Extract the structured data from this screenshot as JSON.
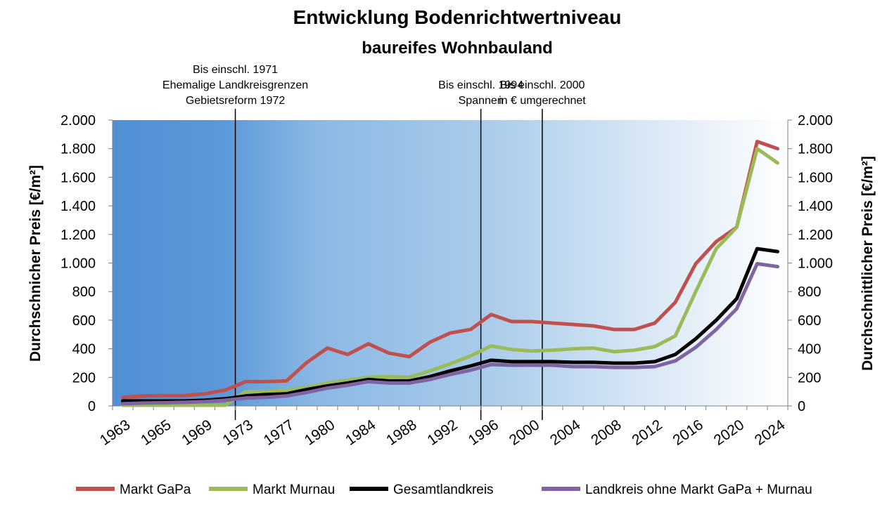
{
  "chart_data": {
    "type": "line",
    "title": "Entwicklung Bodenrichtwertniveau",
    "subtitle": "baureifes Wohnbauland",
    "ylabel_left": "Durchschnicher Preis [€/m²]",
    "ylabel_right": "Durchschnittlicher Preis [€/m²]",
    "ylim": [
      0,
      2000
    ],
    "yticks": [
      0,
      200,
      400,
      600,
      800,
      1000,
      1200,
      1400,
      1600,
      1800,
      2000
    ],
    "ytick_labels": [
      "0",
      "200",
      "400",
      "600",
      "800",
      "1.000",
      "1.200",
      "1.400",
      "1.600",
      "1.800",
      "2.000"
    ],
    "x": [
      "1963",
      "1964",
      "1965",
      "1967",
      "1969",
      "1971",
      "1973",
      "1975",
      "1977",
      "1979",
      "1980",
      "1982",
      "1984",
      "1986",
      "1988",
      "1990",
      "1992",
      "1994",
      "1996",
      "1998",
      "2000",
      "2002",
      "2004",
      "2006",
      "2008",
      "2010",
      "2012",
      "2014",
      "2016",
      "2018",
      "2020",
      "2022",
      "2024"
    ],
    "xtick_labels": [
      "1963",
      "1965",
      "1969",
      "1973",
      "1977",
      "1980",
      "1984",
      "1988",
      "1992",
      "1996",
      "2000",
      "2004",
      "2008",
      "2012",
      "2016",
      "2020",
      "2024"
    ],
    "series": [
      {
        "name": "Markt GaPa",
        "color": "#c0504d",
        "values": [
          60,
          70,
          72,
          72,
          85,
          110,
          170,
          170,
          175,
          305,
          405,
          360,
          435,
          370,
          345,
          445,
          510,
          535,
          640,
          590,
          590,
          580,
          570,
          560,
          535,
          535,
          580,
          725,
          995,
          1150,
          1250,
          1850,
          1800
        ]
      },
      {
        "name": "Markt Murnau",
        "color": "#9bbb59",
        "values": [
          5,
          5,
          5,
          5,
          5,
          5,
          100,
          100,
          110,
          130,
          160,
          180,
          200,
          205,
          200,
          245,
          295,
          350,
          420,
          395,
          385,
          390,
          400,
          405,
          380,
          390,
          415,
          490,
          800,
          1100,
          1250,
          1800,
          1700
        ]
      },
      {
        "name": "Gesamtlandkreis",
        "color": "#000000",
        "values": [
          35,
          35,
          35,
          35,
          40,
          50,
          70,
          80,
          85,
          115,
          140,
          160,
          185,
          175,
          175,
          205,
          245,
          280,
          320,
          310,
          310,
          310,
          305,
          305,
          300,
          300,
          310,
          360,
          470,
          600,
          750,
          1100,
          1080
        ]
      },
      {
        "name": "Landkreis ohne Markt GaPa + Murnau",
        "color": "#8064a2",
        "values": [
          15,
          20,
          22,
          25,
          30,
          40,
          55,
          60,
          70,
          95,
          125,
          145,
          170,
          160,
          160,
          185,
          220,
          250,
          290,
          285,
          285,
          285,
          275,
          275,
          270,
          270,
          275,
          315,
          410,
          535,
          680,
          995,
          975
        ]
      }
    ],
    "annotations": [
      {
        "lines": [
          "Bis einschl. 1971",
          "Ehemalige Landkreisgrenzen",
          "Gebietsreform 1972"
        ],
        "x": "1971"
      },
      {
        "lines": [
          "Bis einschl. 1994",
          "Spannen"
        ],
        "x": "1994"
      },
      {
        "lines": [
          "Bis einschl. 2000",
          "in € umgerechnet"
        ],
        "x": "2000"
      }
    ],
    "legend_position": "bottom",
    "grid": false,
    "background": "blue gradient fading to white"
  }
}
